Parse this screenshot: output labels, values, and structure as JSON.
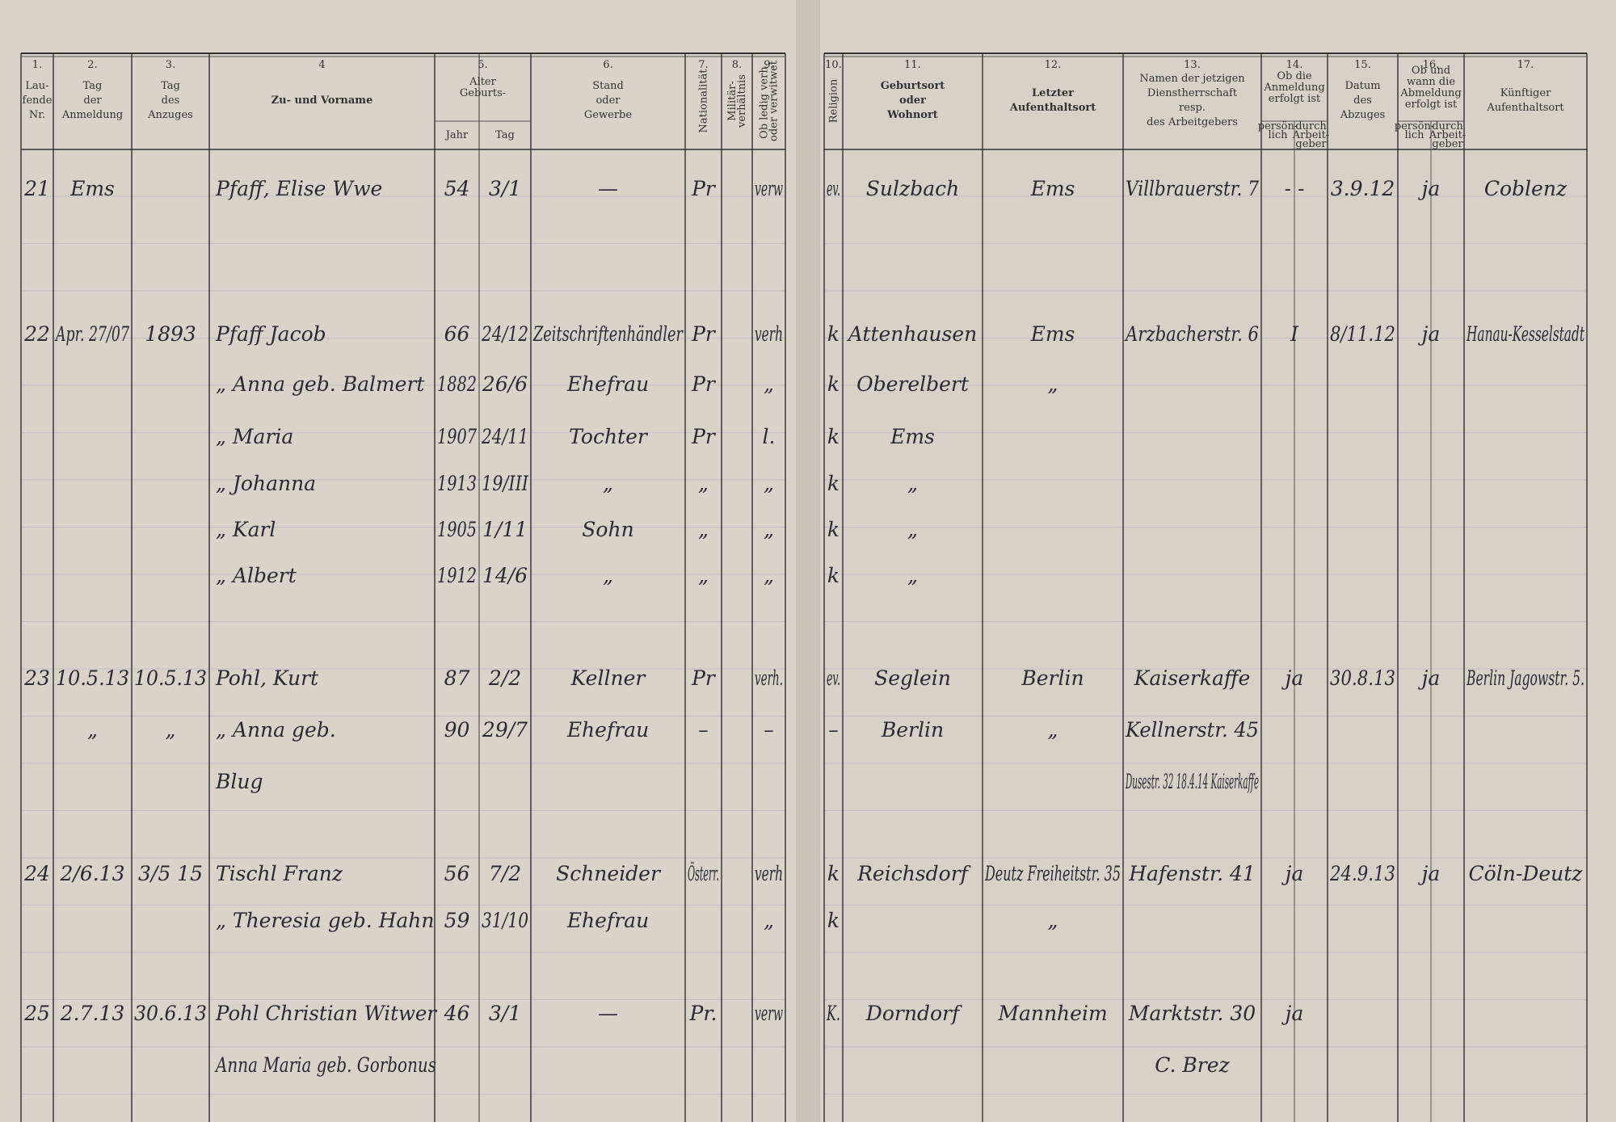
{
  "header": {
    "columns": [
      {
        "number": "1.",
        "lines": [
          "Lau-",
          "fende",
          "Nr."
        ]
      },
      {
        "number": "2.",
        "lines": [
          "Tag",
          "der",
          "Anmeldung"
        ]
      },
      {
        "number": "3.",
        "lines": [
          "Tag",
          "des",
          "Anzuges"
        ]
      },
      {
        "number": "4",
        "lines": [
          "Zu- und Vorname"
        ]
      },
      {
        "number": "5.",
        "lines": [
          "Alter",
          "Geburts-"
        ],
        "sub": [
          [
            "Jahr"
          ],
          [
            "Tag"
          ]
        ]
      },
      {
        "number": "6.",
        "lines": [
          "Stand",
          "oder",
          "Gewerbe"
        ]
      },
      {
        "number": "7.",
        "lines": [
          "Nationalität"
        ]
      },
      {
        "number": "8.",
        "lines": [
          "Militär-",
          "verhältnis"
        ]
      },
      {
        "number": "9.",
        "lines": [
          "Ob ledig verh.",
          "oder verwitwet"
        ]
      },
      {
        "number": "10.",
        "lines": [
          "Religion"
        ]
      },
      {
        "number": "11.",
        "lines": [
          "Geburtsort",
          "oder",
          "Wohnort"
        ]
      },
      {
        "number": "12.",
        "lines": [
          "Letzter",
          "Aufenthaltsort"
        ]
      },
      {
        "number": "13.",
        "lines": [
          "Namen der jetzigen",
          "Dienstherrschaft",
          "resp.",
          "des Arbeitgebers"
        ]
      },
      {
        "number": "14.",
        "lines": [
          "Ob die",
          "Anmeldung",
          "erfolgt ist"
        ],
        "sub": [
          [
            "persön-",
            "lich"
          ],
          [
            "durch",
            "Arbeit-",
            "geber"
          ]
        ]
      },
      {
        "number": "15.",
        "lines": [
          "Datum",
          "des",
          "Abzuges"
        ]
      },
      {
        "number": "16.",
        "lines": [
          "Ob und",
          "wann die",
          "Abmeldung",
          "erfolgt ist"
        ],
        "sub": [
          [
            "persön-",
            "lich"
          ],
          [
            "durch",
            "Arbeit-",
            "geber"
          ]
        ]
      },
      {
        "number": "17.",
        "lines": [
          "Künftiger",
          "Aufenthaltsort"
        ]
      }
    ]
  },
  "entries": [
    {
      "lines": [
        {
          "nr": "21",
          "c2": "Ems",
          "c4": "Pfaff, Elise Wwe",
          "c5a": "54",
          "c5b": "3/1",
          "c6": "—",
          "c7": "Pr",
          "c9": "verw",
          "c10": "ev.",
          "c11": "Sulzbach",
          "c12": "Ems",
          "c13": "Villbrauerstr. 7",
          "c14": "- -",
          "c15": "3.9.12",
          "c16": "ja",
          "c17": "Coblenz"
        }
      ]
    },
    {
      "lines": [
        {
          "nr": "22",
          "c2": "Apr. 27/07",
          "c3": "1893",
          "c4": "Pfaff Jacob",
          "c5a": "66",
          "c5b": "24/12",
          "c6": "Zeitschriftenhändler",
          "c7": "Pr",
          "c9": "verh",
          "c10": "k",
          "c11": "Attenhausen",
          "c12": "Ems",
          "c13": "Arzbacherstr. 6",
          "c14": "I",
          "c15": "8/11.12",
          "c16": "ja",
          "c17": "Hanau-Kesselstadt"
        },
        {
          "c4": "„ Anna geb. Balmert",
          "c5a": "1882",
          "c5b": "26/6",
          "c6": "Ehefrau",
          "c7": "Pr",
          "c9": "„",
          "c10": "k",
          "c11": "Oberelbert",
          "c12": "„"
        },
        {
          "c4": "„ Maria",
          "c5a": "1907",
          "c5b": "24/11",
          "c6": "Tochter",
          "c7": "Pr",
          "c9": "l.",
          "c10": "k",
          "c11": "Ems"
        },
        {
          "c4": "„ Johanna",
          "c5a": "1913",
          "c5b": "19/III",
          "c6": "„",
          "c7": "„",
          "c9": "„",
          "c10": "k",
          "c11": "„"
        },
        {
          "c4": "„ Karl",
          "c5a": "1905",
          "c5b": "1/11",
          "c6": "Sohn",
          "c7": "„",
          "c9": "„",
          "c10": "k",
          "c11": "„"
        },
        {
          "c4": "„ Albert",
          "c5a": "1912",
          "c5b": "14/6",
          "c6": "„",
          "c7": "„",
          "c9": "„",
          "c10": "k",
          "c11": "„"
        }
      ]
    },
    {
      "lines": [
        {
          "nr": "23",
          "c2": "10.5.13",
          "c3": "10.5.13",
          "c4": "Pohl, Kurt",
          "c5a": "87",
          "c5b": "2/2",
          "c6": "Kellner",
          "c7": "Pr",
          "c9": "verh.",
          "c10": "ev.",
          "c11": "Seglein",
          "c12": "Berlin",
          "c13": "Kaiserkaffe",
          "c14": "ja",
          "c15": "30.8.13",
          "c16": "ja",
          "c17": "Berlin Jagowstr. 5."
        },
        {
          "c2": "„",
          "c3": "„",
          "c4": "„ Anna geb.",
          "c5a": "90",
          "c5b": "29/7",
          "c6": "Ehefrau",
          "c7": "–",
          "c9": "–",
          "c10": "–",
          "c11": "Berlin",
          "c12": "„",
          "c13": "Kellnerstr. 45"
        },
        {
          "c4": "Blug",
          "c13": "Dusestr. 32 18.4.14 Kaiserkaffe"
        }
      ]
    },
    {
      "lines": [
        {
          "nr": "24",
          "c2": "2/6.13",
          "c3": "3/5 15",
          "c4": "Tischl Franz",
          "c5a": "56",
          "c5b": "7/2",
          "c6": "Schneider",
          "c7": "Österr.",
          "c9": "verh",
          "c10": "k",
          "c11": "Reichsdorf",
          "c12": "Deutz Freiheitstr. 35",
          "c13": "Hafenstr. 41",
          "c14": "ja",
          "c15": "24.9.13",
          "c16": "ja",
          "c17": "Cöln-Deutz"
        },
        {
          "c4": "„ Theresia geb. Hahn",
          "c5a": "59",
          "c5b": "31/10",
          "c6": "Ehefrau",
          "c9": "„",
          "c10": "k",
          "c12": "„"
        }
      ]
    },
    {
      "lines": [
        {
          "nr": "25",
          "c2": "2.7.13",
          "c3": "30.6.13",
          "c4": "Pohl Christian Witwer",
          "c5a": "46",
          "c5b": "3/1",
          "c6": "—",
          "c7": "Pr.",
          "c9": "verw",
          "c10": "K.",
          "c11": "Dorndorf",
          "c12": "Mannheim",
          "c13": "Marktstr. 30",
          "c14": "ja"
        },
        {
          "c4": "Anna Maria geb. Gorbonus",
          "c13": "C. Brez"
        }
      ]
    }
  ]
}
